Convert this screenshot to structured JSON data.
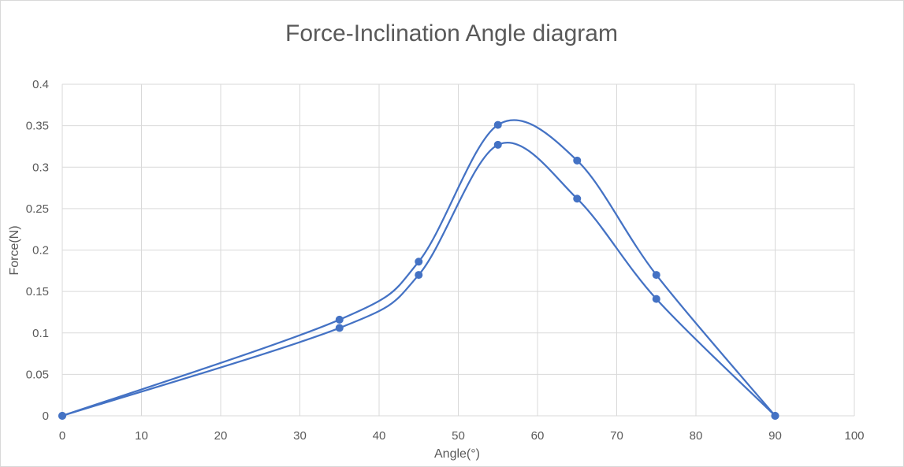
{
  "chart_data": {
    "type": "scatter",
    "title": "Force-Inclination Angle diagram",
    "xlabel": "Angle(°)",
    "ylabel": "Force(N)",
    "xlim": [
      0,
      100
    ],
    "ylim": [
      0,
      0.4
    ],
    "x_ticks": [
      "0",
      "10",
      "20",
      "30",
      "40",
      "50",
      "60",
      "70",
      "80",
      "90",
      "100"
    ],
    "y_ticks": [
      "0",
      "0.05",
      "0.1",
      "0.15",
      "0.2",
      "0.25",
      "0.3",
      "0.35",
      "0.4"
    ],
    "grid": true,
    "legend": "none",
    "smooth_lines": true,
    "colors": {
      "series": "#4472c4",
      "grid": "#d9d9d9",
      "text": "#595959"
    },
    "series": [
      {
        "x": [
          0,
          35,
          45,
          55,
          65,
          75,
          90
        ],
        "y": [
          0,
          0.116,
          0.186,
          0.351,
          0.308,
          0.17,
          0
        ]
      },
      {
        "x": [
          0,
          35,
          45,
          55,
          65,
          75,
          90
        ],
        "y": [
          0,
          0.106,
          0.17,
          0.327,
          0.262,
          0.141,
          0
        ]
      }
    ]
  }
}
